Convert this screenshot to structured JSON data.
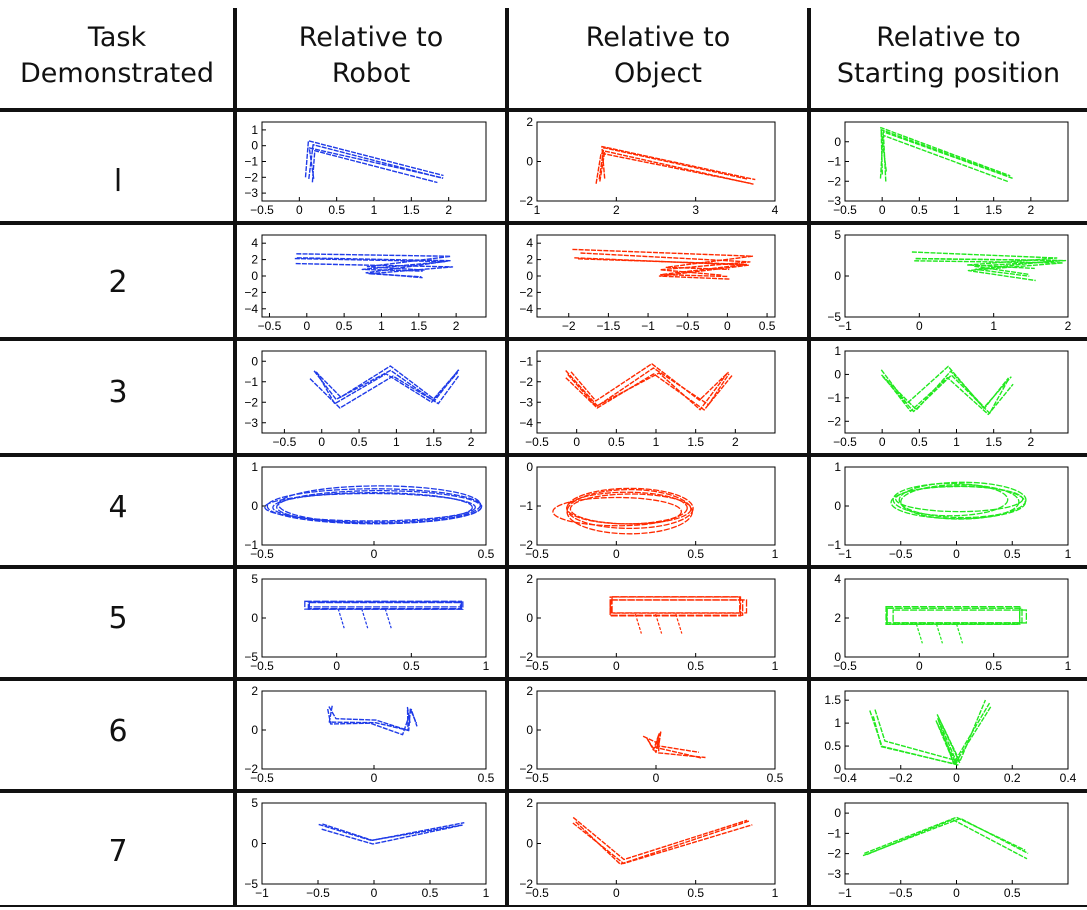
{
  "headers": {
    "task": [
      "Task",
      "Demonstrated"
    ],
    "robot": [
      "Relative to",
      "Robot"
    ],
    "object": [
      "Relative to",
      "Object"
    ],
    "start": [
      "Relative to",
      "Starting position"
    ]
  },
  "colors": {
    "robot": "#1f3be8",
    "object": "#ff2a00",
    "start": "#22e81f"
  },
  "chart_data": {
    "type": "table",
    "columns": [
      "Task Demonstrated",
      "Relative to Robot",
      "Relative to Object",
      "Relative to Starting position"
    ],
    "rows": [
      {
        "label": "l",
        "panels": [
          {
            "frame": "robot",
            "shape": "L",
            "xlim": [
              -0.5,
              2.5
            ],
            "ylim": [
              -3.5,
              1.5
            ],
            "xticks": [
              "-0.5",
              "0",
              "0.5",
              "1",
              "1.5",
              "2"
            ],
            "yticks": [
              "1",
              "0",
              "-1",
              "-2",
              "-3"
            ],
            "points": [
              [
                0.15,
                -2.1
              ],
              [
                0.15,
                0.0
              ],
              [
                1.9,
                -2.1
              ]
            ]
          },
          {
            "frame": "object",
            "shape": "L",
            "xlim": [
              1,
              4
            ],
            "ylim": [
              -2,
              2
            ],
            "xticks": [
              "1",
              "2",
              "3",
              "4"
            ],
            "yticks": [
              "2",
              "0",
              "-2"
            ],
            "points": [
              [
                1.8,
                -1.0
              ],
              [
                1.8,
                0.6
              ],
              [
                3.7,
                -1.0
              ]
            ]
          },
          {
            "frame": "start",
            "shape": "L",
            "xlim": [
              -0.5,
              2.5
            ],
            "ylim": [
              -3,
              1
            ],
            "xticks": [
              "-0.5",
              "0",
              "0.5",
              "1",
              "1.5",
              "2"
            ],
            "yticks": [
              "0",
              "-1",
              "-2",
              "-3"
            ],
            "points": [
              [
                0.0,
                -1.8
              ],
              [
                0.0,
                0.5
              ],
              [
                1.7,
                -1.8
              ]
            ]
          }
        ]
      },
      {
        "label": "2",
        "panels": [
          {
            "frame": "robot",
            "shape": "Z",
            "xlim": [
              -0.6,
              2.4
            ],
            "ylim": [
              -5,
              5
            ],
            "xticks": [
              "-0.5",
              "0",
              "0.5",
              "1",
              "1.5",
              "2"
            ],
            "yticks": [
              "4",
              "2",
              "0",
              "-2",
              "-4"
            ],
            "points": [
              [
                -0.2,
                2.2
              ],
              [
                1.9,
                1.8
              ],
              [
                0.8,
                0.6
              ],
              [
                1.6,
                0.2
              ]
            ]
          },
          {
            "frame": "object",
            "shape": "Z",
            "xlim": [
              -2.4,
              0.6
            ],
            "ylim": [
              -5,
              5
            ],
            "xticks": [
              "-2",
              "-1.5",
              "-1",
              "-0.5",
              "0",
              "0.5"
            ],
            "yticks": [
              "4",
              "2",
              "0",
              "-2",
              "-4"
            ],
            "points": [
              [
                -1.9,
                2.5
              ],
              [
                0.3,
                1.8
              ],
              [
                -0.8,
                0.6
              ],
              [
                0.0,
                0.2
              ]
            ]
          },
          {
            "frame": "start",
            "shape": "Z",
            "xlim": [
              -1,
              2
            ],
            "ylim": [
              -5,
              5
            ],
            "xticks": [
              "-1",
              "0",
              "1",
              "2"
            ],
            "yticks": [
              "5",
              "0",
              "-5"
            ],
            "points": [
              [
                -0.1,
                2.2
              ],
              [
                1.9,
                2.0
              ],
              [
                0.7,
                1.0
              ],
              [
                1.5,
                0.2
              ]
            ]
          }
        ]
      },
      {
        "label": "3",
        "panels": [
          {
            "frame": "robot",
            "shape": "W",
            "xlim": [
              -0.8,
              2.2
            ],
            "ylim": [
              -3.5,
              0.5
            ],
            "xticks": [
              "-0.5",
              "0",
              "0.5",
              "1",
              "1.5",
              "2"
            ],
            "yticks": [
              "0",
              "-1",
              "-2",
              "-3"
            ],
            "points": [
              [
                -0.1,
                -0.6
              ],
              [
                0.2,
                -2.0
              ],
              [
                0.9,
                -0.5
              ],
              [
                1.5,
                -2.0
              ],
              [
                1.8,
                -0.5
              ]
            ]
          },
          {
            "frame": "object",
            "shape": "W",
            "xlim": [
              -0.5,
              2.5
            ],
            "ylim": [
              -4.5,
              -0.5
            ],
            "xticks": [
              "-0.5",
              "0",
              "0.5",
              "1",
              "1.5",
              "2"
            ],
            "yticks": [
              "-1",
              "-2",
              "-3",
              "-4"
            ],
            "points": [
              [
                -0.1,
                -1.6
              ],
              [
                0.3,
                -3.2
              ],
              [
                1.0,
                -1.4
              ],
              [
                1.6,
                -3.2
              ],
              [
                1.9,
                -1.6
              ]
            ]
          },
          {
            "frame": "start",
            "shape": "W",
            "xlim": [
              -0.5,
              2.5
            ],
            "ylim": [
              -2.5,
              1
            ],
            "xticks": [
              "-0.5",
              "0",
              "0.5",
              "1",
              "1.5",
              "2"
            ],
            "yticks": [
              "1",
              "0",
              "-1",
              "-2"
            ],
            "points": [
              [
                0.0,
                0.0
              ],
              [
                0.4,
                -1.5
              ],
              [
                0.9,
                0.1
              ],
              [
                1.4,
                -1.5
              ],
              [
                1.7,
                -0.2
              ]
            ]
          }
        ]
      },
      {
        "label": "4",
        "panels": [
          {
            "frame": "robot",
            "shape": "ellipse",
            "xlim": [
              -0.5,
              0.5
            ],
            "ylim": [
              -1,
              1
            ],
            "xticks": [
              "-0.5",
              "0",
              "0.5"
            ],
            "yticks": [
              "1",
              "0",
              "-1"
            ],
            "points": [
              [
                0.0,
                0.0,
                0.47,
                0.6
              ]
            ]
          },
          {
            "frame": "object",
            "shape": "ellipse",
            "xlim": [
              -0.5,
              1
            ],
            "ylim": [
              -2,
              0
            ],
            "xticks": [
              "-0.5",
              "0",
              "0.5",
              "1"
            ],
            "yticks": [
              "0",
              "-1",
              "-2"
            ],
            "points": [
              [
                0.05,
                -1.1,
                0.45,
                0.65
              ]
            ]
          },
          {
            "frame": "start",
            "shape": "ellipse",
            "xlim": [
              -1,
              1
            ],
            "ylim": [
              -1,
              1
            ],
            "xticks": [
              "-1",
              "-0.5",
              "0",
              "0.5",
              "1"
            ],
            "yticks": [
              "1",
              "0",
              "-1"
            ],
            "points": [
              [
                0.0,
                0.15,
                0.6,
                0.55
              ]
            ]
          }
        ]
      },
      {
        "label": "5",
        "panels": [
          {
            "frame": "robot",
            "shape": "rect",
            "xlim": [
              -0.5,
              1
            ],
            "ylim": [
              -5,
              5
            ],
            "xticks": [
              "-0.5",
              "0",
              "0.5",
              "1"
            ],
            "yticks": [
              "5",
              "0",
              "-5"
            ],
            "points": [
              [
                -0.2,
                2.2
              ],
              [
                0.85,
                1.2
              ]
            ]
          },
          {
            "frame": "object",
            "shape": "rect",
            "xlim": [
              -0.5,
              1
            ],
            "ylim": [
              -2,
              2
            ],
            "xticks": [
              "-0.5",
              "0",
              "0.5",
              "1"
            ],
            "yticks": [
              "2",
              "0",
              "-2"
            ],
            "points": [
              [
                -0.05,
                1.0
              ],
              [
                0.8,
                0.2
              ]
            ]
          },
          {
            "frame": "start",
            "shape": "rect",
            "xlim": [
              -0.5,
              1
            ],
            "ylim": [
              0,
              4
            ],
            "xticks": [
              "-0.5",
              "0",
              "0.5",
              "1"
            ],
            "yticks": [
              "4",
              "2",
              "0"
            ],
            "points": [
              [
                -0.2,
                2.5
              ],
              [
                0.7,
                1.7
              ]
            ]
          }
        ]
      },
      {
        "label": "6",
        "panels": [
          {
            "frame": "robot",
            "shape": "branch",
            "xlim": [
              -0.5,
              0.5
            ],
            "ylim": [
              -2,
              2
            ],
            "xticks": [
              "-0.5",
              "0",
              "0.5"
            ],
            "yticks": [
              "2",
              "0",
              "-2"
            ],
            "points": [
              [
                -0.2,
                1.1
              ],
              [
                -0.18,
                0.4
              ],
              [
                0.0,
                0.3
              ],
              [
                0.15,
                -0.1
              ],
              [
                0.15,
                1.0
              ],
              [
                0.18,
                0.2
              ]
            ]
          },
          {
            "frame": "object",
            "shape": "branch",
            "xlim": [
              -0.5,
              0.5
            ],
            "ylim": [
              -2,
              2
            ],
            "xticks": [
              "-0.5",
              "0",
              "0.5"
            ],
            "yticks": [
              "2",
              "0",
              "-2"
            ],
            "points": [
              [
                -0.05,
                -0.4
              ],
              [
                0.0,
                -1.0
              ],
              [
                0.0,
                -0.3
              ],
              [
                0.0,
                -1.0
              ],
              [
                0.2,
                -1.4
              ]
            ]
          },
          {
            "frame": "start",
            "shape": "branch",
            "xlim": [
              -0.4,
              0.4
            ],
            "ylim": [
              0,
              1.7
            ],
            "xticks": [
              "-0.4",
              "-0.2",
              "0",
              "0.2",
              "0.4"
            ],
            "yticks": [
              "1.5",
              "1",
              "0.5",
              "0"
            ],
            "points": [
              [
                -0.3,
                1.2
              ],
              [
                -0.27,
                0.5
              ],
              [
                0.0,
                0.1
              ],
              [
                -0.08,
                1.1
              ],
              [
                0.0,
                0.1
              ],
              [
                0.12,
                1.4
              ]
            ]
          }
        ]
      },
      {
        "label": "7",
        "panels": [
          {
            "frame": "robot",
            "shape": "V",
            "xlim": [
              -1,
              1
            ],
            "ylim": [
              -5,
              5
            ],
            "xticks": [
              "-1",
              "-0.5",
              "0",
              "0.5",
              "1"
            ],
            "yticks": [
              "5",
              "0",
              "-5"
            ],
            "points": [
              [
                -0.5,
                2.0
              ],
              [
                0.0,
                0.0
              ],
              [
                0.8,
                2.2
              ]
            ]
          },
          {
            "frame": "object",
            "shape": "V",
            "xlim": [
              -0.5,
              1
            ],
            "ylim": [
              -2,
              2
            ],
            "xticks": [
              "-0.5",
              "0",
              "0.5",
              "1"
            ],
            "yticks": [
              "2",
              "0",
              "-2"
            ],
            "points": [
              [
                -0.25,
                1.0
              ],
              [
                0.05,
                -1.0
              ],
              [
                0.85,
                1.0
              ]
            ]
          },
          {
            "frame": "start",
            "shape": "inv-V",
            "xlim": [
              -1,
              1
            ],
            "ylim": [
              -3.5,
              0.5
            ],
            "xticks": [
              "-1",
              "-0.5",
              "0",
              "0.5"
            ],
            "yticks": [
              "0",
              "-1",
              "-2",
              "-3"
            ],
            "points": [
              [
                -0.85,
                -2.1
              ],
              [
                0.0,
                -0.3
              ],
              [
                0.6,
                -2.1
              ]
            ]
          }
        ]
      }
    ]
  }
}
